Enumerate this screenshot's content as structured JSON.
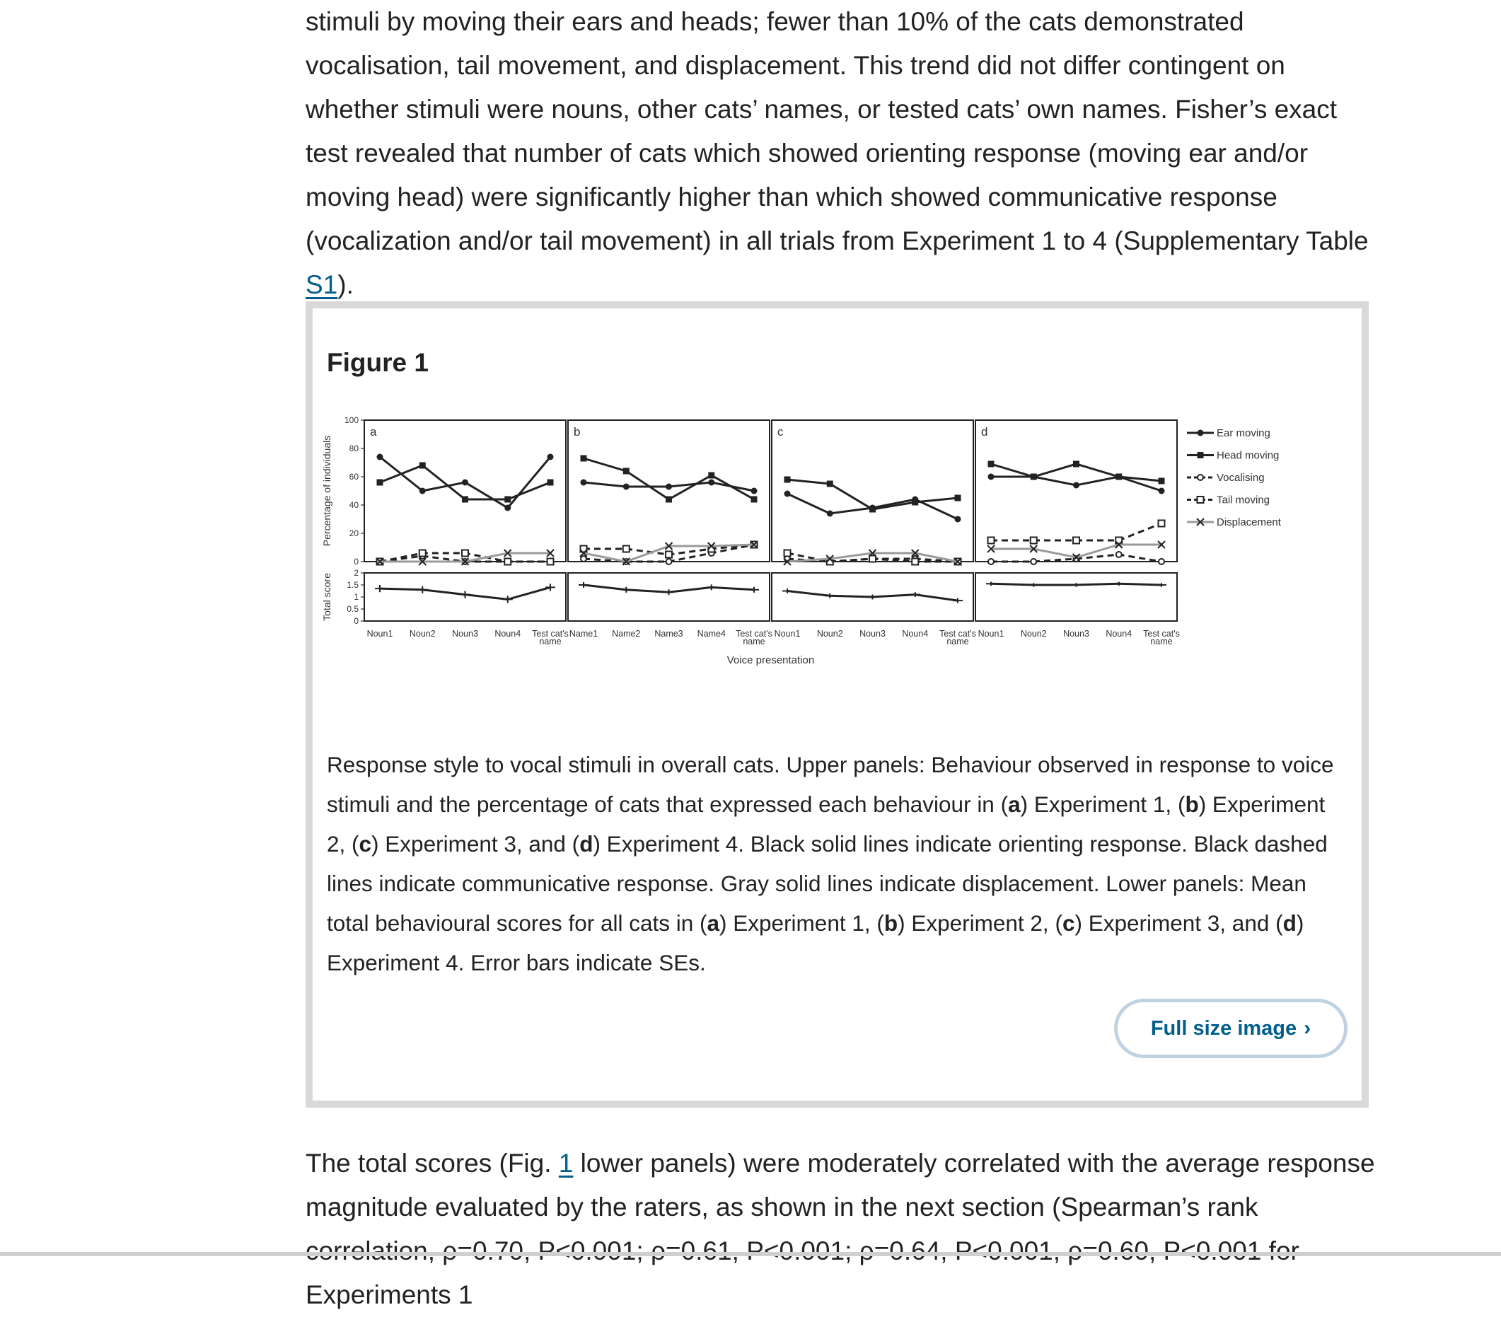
{
  "article": {
    "para_top": {
      "text": "stimuli by moving their ears and heads; fewer than 10% of the cats demonstrated vocalisation, tail movement, and displacement. This trend did not differ contingent on whether stimuli were nouns, other cats’ names, or tested cats’ own names. Fisher’s exact test revealed that number of cats which showed orienting response (moving ear and/or moving head) were significantly higher than which showed communicative response (vocalization and/or tail movement) in all trials from Experiment 1 to 4 (Supplementary Table ",
      "link": "S1",
      "end": ")."
    },
    "figure": {
      "title": "Figure 1",
      "caption_parts": [
        {
          "t": "Response style to vocal stimuli in overall cats. Upper panels: Behaviour observed in response to voice stimuli and the percentage of cats that expressed each behaviour in ("
        },
        {
          "t": "a",
          "b": true
        },
        {
          "t": ") Experiment 1, ("
        },
        {
          "t": "b",
          "b": true
        },
        {
          "t": ") Experiment 2, ("
        },
        {
          "t": "c",
          "b": true
        },
        {
          "t": ") Experiment 3, and ("
        },
        {
          "t": "d",
          "b": true
        },
        {
          "t": ") Experiment 4. Black solid lines indicate orienting response. Black dashed lines indicate communicative response. Gray solid lines indicate displacement. Lower panels: Mean total behavioural scores for all cats in ("
        },
        {
          "t": "a",
          "b": true
        },
        {
          "t": ") Experiment 1, ("
        },
        {
          "t": "b",
          "b": true
        },
        {
          "t": ") Experiment 2, ("
        },
        {
          "t": "c",
          "b": true
        },
        {
          "t": ") Experiment 3, and ("
        },
        {
          "t": "d",
          "b": true
        },
        {
          "t": ") Experiment 4. Error bars indicate SEs."
        }
      ],
      "full_size_label": "Full size image",
      "chevron_icon": "chevron-right-icon"
    },
    "para_bottom": {
      "prefix": "The total scores (Fig. ",
      "link": "1",
      "rest": " lower panels) were moderately correlated with the average response magnitude evaluated by the raters, as shown in the next section (Spearman’s rank correlation, ρ=0.70, P<0.001; ρ=0.61, P<0.001; ρ=0.64, P<0.001, ρ=0.60, P<0.001 for Experiments 1"
    }
  },
  "chart_data": {
    "type": "line",
    "xlabel": "Voice presentation",
    "upper_ylabel": "Percentage of individuals",
    "lower_ylabel": "Total score",
    "upper_ylim": [
      0,
      100
    ],
    "upper_yticks": [
      "0",
      "20",
      "40",
      "60",
      "80",
      "100"
    ],
    "lower_ylim": [
      0,
      2
    ],
    "lower_yticks": [
      "0",
      "0.5",
      "1",
      "1.5",
      "2"
    ],
    "legend_position": "right",
    "legend": [
      {
        "name": "Ear moving",
        "style": "solid",
        "marker": "dot"
      },
      {
        "name": "Head moving",
        "style": "solid",
        "marker": "square"
      },
      {
        "name": "Vocalising",
        "style": "dashed",
        "marker": "circle"
      },
      {
        "name": "Tail moving",
        "style": "dashed",
        "marker": "open-square"
      },
      {
        "name": "Displacement",
        "style": "solid",
        "marker": "cross"
      }
    ],
    "panels": [
      {
        "label": "a",
        "categories": [
          [
            "Noun1"
          ],
          [
            "Noun2"
          ],
          [
            "Noun3"
          ],
          [
            "Noun4"
          ],
          [
            "Test cat's",
            "name"
          ]
        ],
        "series": [
          {
            "name": "Ear moving",
            "values": [
              74,
              50,
              56,
              38,
              74
            ]
          },
          {
            "name": "Head moving",
            "values": [
              56,
              68,
              44,
              44,
              56
            ]
          },
          {
            "name": "Vocalising",
            "values": [
              0,
              4,
              0,
              0,
              0
            ]
          },
          {
            "name": "Tail moving",
            "values": [
              0,
              6,
              6,
              0,
              0
            ]
          },
          {
            "name": "Displacement",
            "values": [
              0,
              0,
              0,
              6,
              6
            ]
          }
        ],
        "total": [
          1.35,
          1.3,
          1.1,
          0.9,
          1.4
        ],
        "se": [
          0.15,
          0.15,
          0.15,
          0.15,
          0.15
        ]
      },
      {
        "label": "b",
        "categories": [
          [
            "Name1"
          ],
          [
            "Name2"
          ],
          [
            "Name3"
          ],
          [
            "Name4"
          ],
          [
            "Test cat's",
            "name"
          ]
        ],
        "series": [
          {
            "name": "Ear moving",
            "values": [
              56,
              53,
              53,
              56,
              50
            ]
          },
          {
            "name": "Head moving",
            "values": [
              73,
              64,
              44,
              61,
              44
            ]
          },
          {
            "name": "Vocalising",
            "values": [
              2,
              0,
              0,
              6,
              12
            ]
          },
          {
            "name": "Tail moving",
            "values": [
              9,
              9,
              5,
              9,
              12
            ]
          },
          {
            "name": "Displacement",
            "values": [
              6,
              0,
              11,
              11,
              12
            ]
          }
        ],
        "total": [
          1.5,
          1.3,
          1.2,
          1.4,
          1.3
        ],
        "se": [
          0.12,
          0.12,
          0.12,
          0.12,
          0.12
        ]
      },
      {
        "label": "c",
        "categories": [
          [
            "Noun1"
          ],
          [
            "Noun2"
          ],
          [
            "Noun3"
          ],
          [
            "Noun4"
          ],
          [
            "Test cat's",
            "name"
          ]
        ],
        "series": [
          {
            "name": "Ear moving",
            "values": [
              48,
              34,
              38,
              44,
              30
            ]
          },
          {
            "name": "Head moving",
            "values": [
              58,
              55,
              37,
              42,
              45
            ]
          },
          {
            "name": "Vocalising",
            "values": [
              2,
              0,
              2,
              2,
              0
            ]
          },
          {
            "name": "Tail moving",
            "values": [
              6,
              0,
              2,
              0,
              0
            ]
          },
          {
            "name": "Displacement",
            "values": [
              0,
              2,
              6,
              6,
              0
            ]
          }
        ],
        "total": [
          1.25,
          1.05,
          1.0,
          1.1,
          0.85
        ],
        "se": [
          0.1,
          0.1,
          0.1,
          0.1,
          0.1
        ]
      },
      {
        "label": "d",
        "categories": [
          [
            "Noun1"
          ],
          [
            "Noun2"
          ],
          [
            "Noun3"
          ],
          [
            "Noun4"
          ],
          [
            "Test cat's",
            "name"
          ]
        ],
        "series": [
          {
            "name": "Ear moving",
            "values": [
              60,
              60,
              54,
              60,
              50
            ]
          },
          {
            "name": "Head moving",
            "values": [
              69,
              60,
              69,
              60,
              57
            ]
          },
          {
            "name": "Vocalising",
            "values": [
              0,
              0,
              2,
              5,
              0
            ]
          },
          {
            "name": "Tail moving",
            "values": [
              15,
              15,
              15,
              15,
              27
            ]
          },
          {
            "name": "Displacement",
            "values": [
              9,
              9,
              3,
              12,
              12
            ]
          }
        ],
        "total": [
          1.55,
          1.5,
          1.5,
          1.55,
          1.5
        ],
        "se": [
          0.08,
          0.08,
          0.08,
          0.08,
          0.08
        ]
      }
    ]
  }
}
